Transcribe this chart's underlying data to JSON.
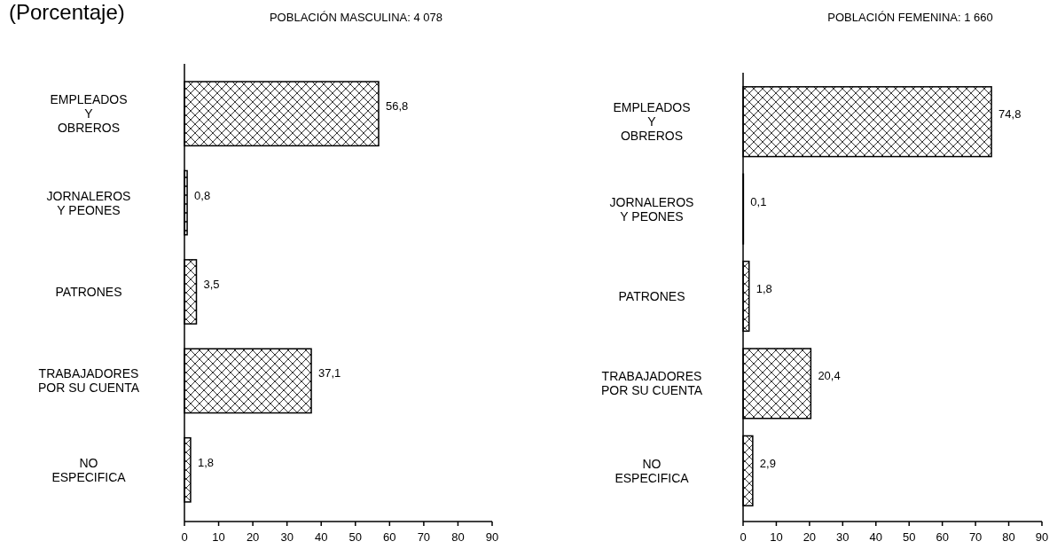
{
  "chart_data": [
    {
      "type": "bar",
      "orientation": "horizontal",
      "title": "POBLACIÓN MASCULINA: 4 078",
      "annotations": [
        "(Porcentaje)"
      ],
      "categories": [
        "EMPLEADOS\nY\nOBREROS",
        "JORNALEROS\nY PEONES",
        "PATRONES",
        "TRABAJADORES\nPOR SU CUENTA",
        "NO\nESPECIFICA"
      ],
      "values": [
        56.8,
        0.8,
        3.5,
        37.1,
        1.8
      ],
      "value_labels": [
        "56,8",
        "0,8",
        "3,5",
        "37,1",
        "1,8"
      ],
      "color": "#000000",
      "xlim": [
        0,
        90
      ],
      "xticks": [
        0,
        10,
        20,
        30,
        40,
        50,
        60,
        70,
        80,
        90
      ]
    },
    {
      "type": "bar",
      "orientation": "horizontal",
      "title": "POBLACIÓN FEMENINA: 1 660",
      "categories": [
        "EMPLEADOS\nY\nOBREROS",
        "JORNALEROS\nY PEONES",
        "PATRONES",
        "TRABAJADORES\nPOR SU CUENTA",
        "NO\nESPECIFICA"
      ],
      "values": [
        74.8,
        0.1,
        1.8,
        20.4,
        2.9
      ],
      "value_labels": [
        "74,8",
        "0,1",
        "1,8",
        "20,4",
        "2,9"
      ],
      "color": "#000000",
      "xlim": [
        0,
        90
      ],
      "xticks": [
        0,
        10,
        20,
        30,
        40,
        50,
        60,
        70,
        80,
        90
      ]
    }
  ]
}
